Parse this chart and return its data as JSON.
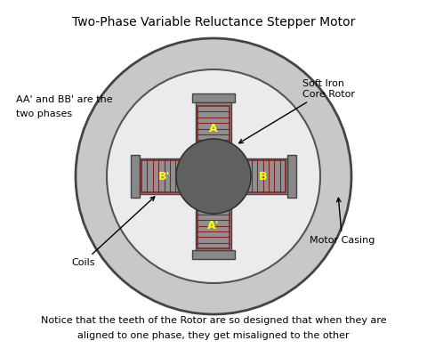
{
  "title": "Two-Phase Variable Reluctance Stepper Motor",
  "bg_color": "#ffffff",
  "outer_ring_color": "#c8c8c8",
  "inner_ring_color": "#e0e0e0",
  "stator_color": "#888888",
  "coil_bg_color": "#909090",
  "coil_stripe_color": "#8B2020",
  "rotor_color": "#606060",
  "tooth_color": "#707070",
  "label_A": "A",
  "label_A_prime": "A'",
  "label_B": "B",
  "label_B_prime": "B'",
  "label_color": "#ffff00",
  "annotation_color": "#000000",
  "bottom_text_line1": "Notice that the teeth of the Rotor are so designed that when they are",
  "bottom_text_line2": "aligned to one phase, they get misaligned to the other",
  "left_text_line1": "AA' and BB' are the",
  "left_text_line2": "two phases",
  "coils_label": "Coils",
  "soft_iron_label": "Soft Iron\nCore Rotor",
  "motor_casing_label": "Motor Casing"
}
